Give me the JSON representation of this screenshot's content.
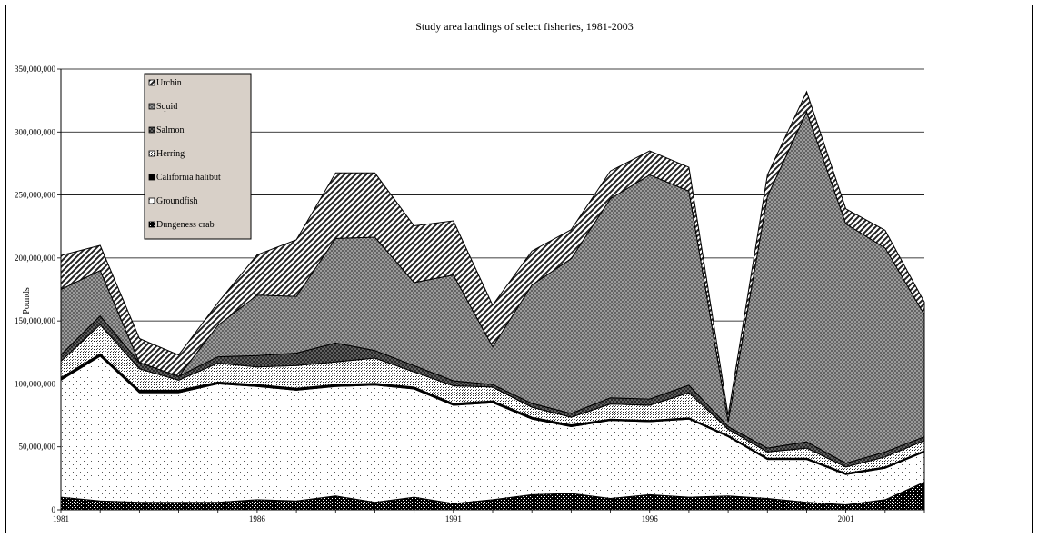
{
  "chart_data": {
    "type": "area",
    "stacked": true,
    "title": "Study area landings of select fisheries, 1981-2003",
    "xlabel": "",
    "ylabel": "Pounds",
    "x": [
      1981,
      1982,
      1983,
      1984,
      1985,
      1986,
      1987,
      1988,
      1989,
      1990,
      1991,
      1992,
      1993,
      1994,
      1995,
      1996,
      1997,
      1998,
      1999,
      2000,
      2001,
      2002,
      2003
    ],
    "x_tick_labels": [
      "1981",
      "1986",
      "1991",
      "1996",
      "2001"
    ],
    "y_tick_labels": [
      "0",
      "50,000,000",
      "100,000,000",
      "150,000,000",
      "200,000,000",
      "250,000,000",
      "300,000,000",
      "350,000,000"
    ],
    "ylim": [
      0,
      350000000
    ],
    "grid": true,
    "legend_position": "top-left",
    "series": [
      {
        "name": "Dungeness crab",
        "values": [
          10000000,
          7000000,
          6000000,
          6000000,
          6000000,
          8000000,
          7000000,
          11000000,
          6000000,
          10000000,
          5000000,
          8000000,
          12000000,
          13000000,
          9000000,
          12000000,
          10000000,
          11000000,
          9000000,
          6000000,
          4000000,
          8000000,
          22000000
        ]
      },
      {
        "name": "Groundfish",
        "values": [
          93000000,
          115000000,
          87000000,
          87000000,
          94000000,
          90000000,
          88000000,
          87000000,
          93000000,
          86000000,
          78000000,
          77000000,
          60000000,
          53000000,
          62000000,
          58000000,
          62000000,
          47000000,
          31000000,
          34000000,
          24000000,
          25000000,
          24000000
        ]
      },
      {
        "name": "California halibut",
        "values": [
          2000000,
          2000000,
          2000000,
          2000000,
          1500000,
          1500000,
          1500000,
          1500000,
          1500000,
          1500000,
          1500000,
          1500000,
          1500000,
          1500000,
          1000000,
          1000000,
          1000000,
          1000000,
          1000000,
          1000000,
          1000000,
          1000000,
          1000000
        ]
      },
      {
        "name": "Herring",
        "values": [
          13000000,
          23000000,
          17000000,
          8000000,
          15000000,
          14000000,
          18000000,
          18000000,
          20000000,
          12000000,
          14000000,
          11000000,
          8000000,
          6000000,
          12000000,
          12000000,
          20000000,
          5000000,
          5000000,
          8000000,
          5000000,
          8000000,
          8000000
        ]
      },
      {
        "name": "Salmon",
        "values": [
          5000000,
          7000000,
          5000000,
          3000000,
          5000000,
          9000000,
          10000000,
          15000000,
          6000000,
          5000000,
          4000000,
          2000000,
          3000000,
          3000000,
          5000000,
          5000000,
          6000000,
          2000000,
          3000000,
          5000000,
          3000000,
          4000000,
          3000000
        ]
      },
      {
        "name": "Squid",
        "values": [
          52000000,
          36000000,
          0,
          0,
          25000000,
          48000000,
          45000000,
          83000000,
          90000000,
          66000000,
          84000000,
          30000000,
          94000000,
          123000000,
          158000000,
          178000000,
          154000000,
          4000000,
          200000000,
          262000000,
          190000000,
          162000000,
          97000000
        ]
      },
      {
        "name": "Urchin",
        "values": [
          27000000,
          20000000,
          19000000,
          17000000,
          18000000,
          32000000,
          45000000,
          52000000,
          51000000,
          45000000,
          43000000,
          33000000,
          27000000,
          23000000,
          22000000,
          19000000,
          19000000,
          5000000,
          17000000,
          16000000,
          12000000,
          14000000,
          10000000
        ]
      }
    ]
  }
}
